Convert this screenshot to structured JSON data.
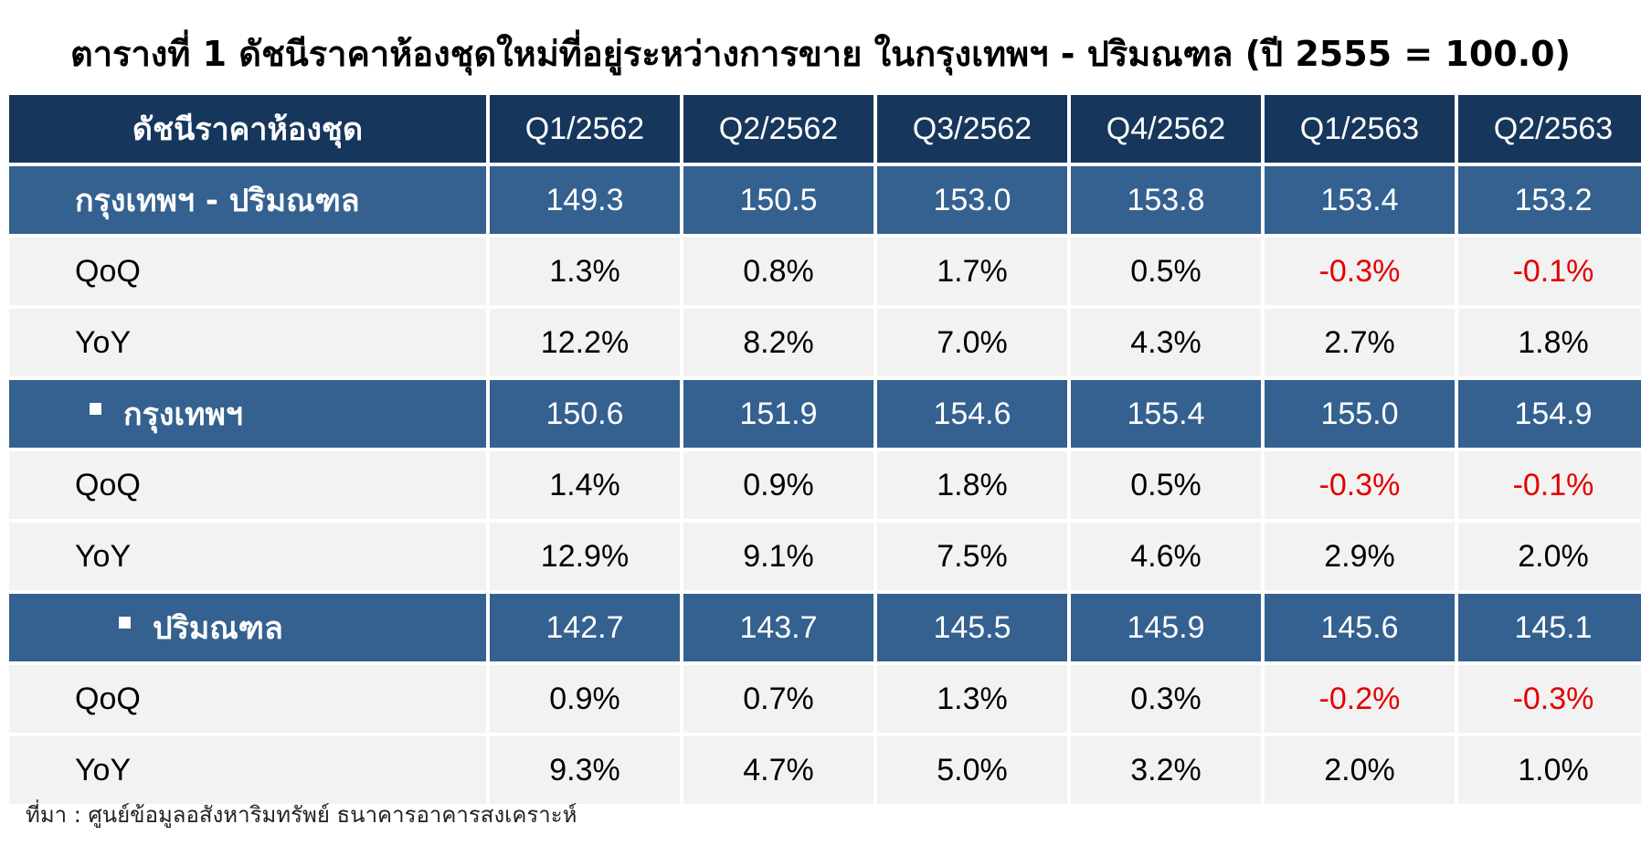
{
  "title": "ตารางที่ 1 ดัชนีราคาห้องชุดใหม่ที่อยู่ระหว่างการขาย ในกรุงเทพฯ - ปริมณฑล (ปี 2555 = 100.0)",
  "table": {
    "header_label": "ดัชนีราคาห้องชุด",
    "columns": [
      "Q1/2562",
      "Q2/2562",
      "Q3/2562",
      "Q4/2562",
      "Q1/2563",
      "Q2/2563"
    ],
    "rows": [
      {
        "label": "กรุงเทพฯ - ปริมณฑล",
        "values": [
          "149.3",
          "150.5",
          "153.0",
          "153.8",
          "153.4",
          "153.2"
        ]
      },
      {
        "label": "QoQ",
        "values": [
          "1.3%",
          "0.8%",
          "1.7%",
          "0.5%",
          "-0.3%",
          "-0.1%"
        ]
      },
      {
        "label": "YoY",
        "values": [
          "12.2%",
          "8.2%",
          "7.0%",
          "4.3%",
          "2.7%",
          "1.8%"
        ]
      },
      {
        "label": "กรุงเทพฯ",
        "values": [
          "150.6",
          "151.9",
          "154.6",
          "155.4",
          "155.0",
          "154.9"
        ]
      },
      {
        "label": "QoQ",
        "values": [
          "1.4%",
          "0.9%",
          "1.8%",
          "0.5%",
          "-0.3%",
          "-0.1%"
        ]
      },
      {
        "label": "YoY",
        "values": [
          "12.9%",
          "9.1%",
          "7.5%",
          "4.6%",
          "2.9%",
          "2.0%"
        ]
      },
      {
        "label": "ปริมณฑล",
        "values": [
          "142.7",
          "143.7",
          "145.5",
          "145.9",
          "145.6",
          "145.1"
        ]
      },
      {
        "label": "QoQ",
        "values": [
          "0.9%",
          "0.7%",
          "1.3%",
          "0.3%",
          "-0.2%",
          "-0.3%"
        ]
      },
      {
        "label": "YoY",
        "values": [
          "9.3%",
          "4.7%",
          "5.0%",
          "3.2%",
          "2.0%",
          "1.0%"
        ]
      }
    ]
  },
  "source": "ที่มา : ศูนย์ข้อมูลอสังหาริมทรัพย์ ธนาคารอาคารสงเคราะห์",
  "colors": {
    "header_bg": "#16365c",
    "band_bg": "#34618f",
    "row_bg": "#f2f2f2",
    "negative_text": "#e30000"
  }
}
